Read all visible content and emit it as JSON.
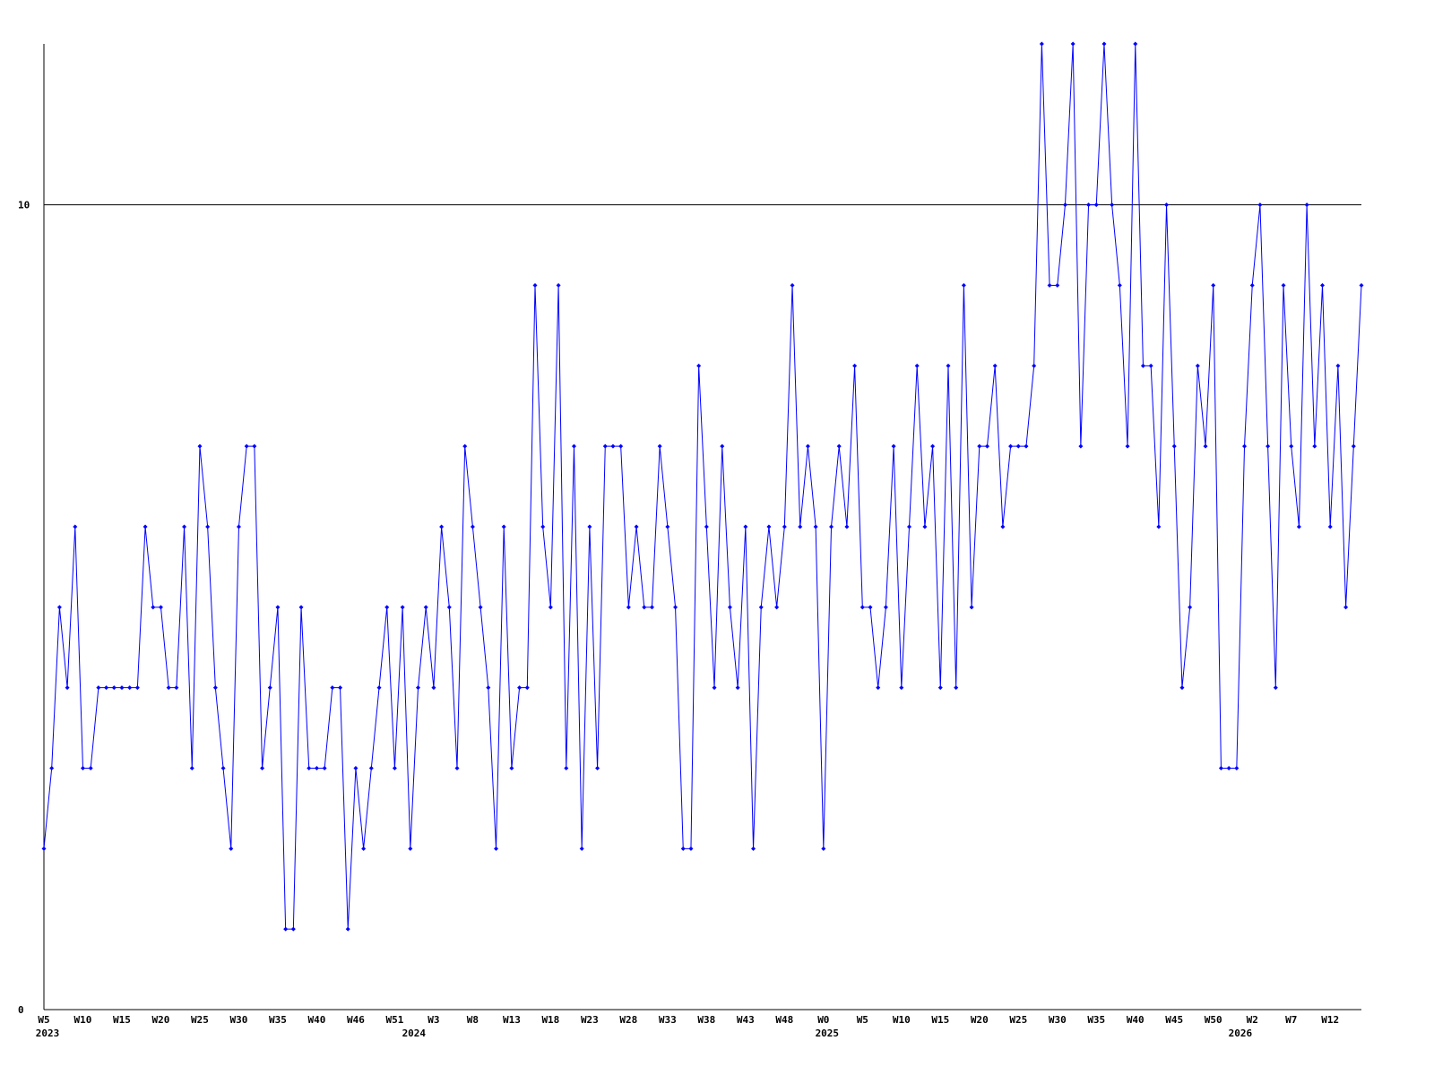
{
  "chart_data": {
    "type": "line",
    "color": "#0000ff",
    "categories": [
      "W5",
      null,
      null,
      null,
      null,
      "W10",
      null,
      null,
      null,
      null,
      "W15",
      null,
      null,
      null,
      null,
      "W20",
      null,
      null,
      null,
      null,
      "W25",
      null,
      null,
      null,
      null,
      "W30",
      null,
      null,
      null,
      null,
      "W35",
      null,
      null,
      null,
      null,
      "W40",
      null,
      null,
      null,
      null,
      "W46",
      null,
      null,
      null,
      null,
      "W51",
      null,
      null,
      null,
      null,
      "W3",
      null,
      null,
      null,
      null,
      "W8",
      null,
      null,
      null,
      null,
      "W13",
      null,
      null,
      null,
      null,
      "W18",
      null,
      null,
      null,
      null,
      "W23",
      null,
      null,
      null,
      null,
      "W28",
      null,
      null,
      null,
      null,
      "W33",
      null,
      null,
      null,
      null,
      "W38",
      null,
      null,
      null,
      null,
      "W43",
      null,
      null,
      null,
      null,
      "W48",
      null,
      null,
      null,
      null,
      "W0",
      null,
      null,
      null,
      null,
      "W5",
      null,
      null,
      null,
      null,
      "W10",
      null,
      null,
      null,
      null,
      "W15",
      null,
      null,
      null,
      null,
      "W20",
      null,
      null,
      null,
      null,
      "W25",
      null,
      null,
      null,
      null,
      "W30",
      null,
      null,
      null,
      null,
      "W35",
      null,
      null,
      null,
      null,
      "W40",
      null,
      null,
      null,
      null,
      "W45",
      null,
      null,
      null,
      null,
      "W50",
      null,
      null,
      null,
      null,
      "W2",
      null,
      null,
      null,
      null,
      "W7",
      null,
      null,
      null,
      null,
      "W12",
      null,
      null,
      null,
      null
    ],
    "years": [
      "2023",
      null,
      null,
      null,
      null,
      null,
      null,
      null,
      null,
      null,
      null,
      null,
      null,
      null,
      null,
      null,
      null,
      null,
      null,
      null,
      null,
      null,
      null,
      null,
      null,
      null,
      null,
      null,
      null,
      null,
      null,
      null,
      null,
      null,
      null,
      null,
      null,
      null,
      null,
      null,
      null,
      null,
      null,
      null,
      null,
      null,
      null,
      "2024",
      null,
      null,
      null,
      null,
      null,
      null,
      null,
      null,
      null,
      null,
      null,
      null,
      null,
      null,
      null,
      null,
      null,
      null,
      null,
      null,
      null,
      null,
      null,
      null,
      null,
      null,
      null,
      null,
      null,
      null,
      null,
      null,
      null,
      null,
      null,
      null,
      null,
      null,
      null,
      null,
      null,
      null,
      null,
      null,
      null,
      null,
      null,
      null,
      null,
      null,
      null,
      null,
      "2025",
      null,
      null,
      null,
      null,
      null,
      null,
      null,
      null,
      null,
      null,
      null,
      null,
      null,
      null,
      null,
      null,
      null,
      null,
      null,
      null,
      null,
      null,
      null,
      null,
      null,
      null,
      null,
      null,
      null,
      null,
      null,
      null,
      null,
      null,
      null,
      null,
      null,
      null,
      null,
      null,
      null,
      null,
      null,
      null,
      null,
      null,
      null,
      null,
      null,
      null,
      null,
      null,
      "2026",
      null,
      null,
      null,
      null,
      null,
      null,
      null,
      null,
      null,
      null,
      null,
      null,
      null,
      null,
      null,
      null
    ],
    "values": [
      2,
      3,
      5,
      4,
      6,
      3,
      3,
      4,
      4,
      4,
      4,
      4,
      4,
      6,
      5,
      5,
      4,
      4,
      6,
      3,
      7,
      6,
      4,
      3,
      2,
      6,
      7,
      7,
      3,
      4,
      5,
      1,
      1,
      5,
      3,
      3,
      3,
      4,
      4,
      1,
      3,
      2,
      3,
      4,
      5,
      3,
      5,
      2,
      4,
      5,
      4,
      6,
      5,
      3,
      7,
      6,
      5,
      4,
      2,
      6,
      3,
      4,
      4,
      9,
      6,
      5,
      9,
      3,
      7,
      2,
      6,
      3,
      7,
      7,
      7,
      5,
      6,
      5,
      5,
      7,
      6,
      5,
      2,
      2,
      8,
      6,
      4,
      7,
      5,
      4,
      6,
      2,
      5,
      6,
      5,
      6,
      9,
      6,
      7,
      6,
      2,
      6,
      7,
      6,
      8,
      5,
      5,
      4,
      5,
      7,
      4,
      6,
      8,
      6,
      7,
      4,
      8,
      4,
      9,
      5,
      7,
      7,
      8,
      6,
      7,
      7,
      7,
      8,
      12,
      9,
      9,
      10,
      12,
      7,
      10,
      10,
      12,
      10,
      9,
      7,
      12,
      8,
      8,
      6,
      10,
      7,
      4,
      5,
      8,
      7,
      9,
      3,
      3,
      3,
      7,
      9,
      10,
      7,
      4,
      9,
      7,
      6,
      10,
      7,
      9,
      6,
      8,
      5,
      7,
      9
    ],
    "ylim": [
      0,
      12
    ],
    "yticks": [
      0,
      10
    ],
    "grid": true
  }
}
